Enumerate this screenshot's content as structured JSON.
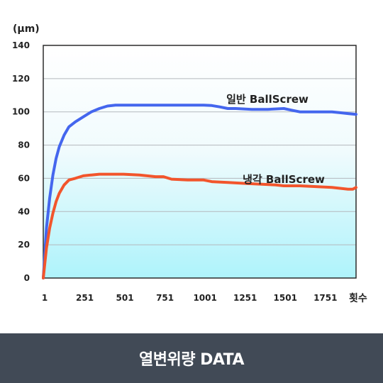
{
  "chart_data": {
    "type": "line",
    "unit_label": "(μm)",
    "x_axis_label": "횟수",
    "x_ticks": [
      1,
      251,
      501,
      751,
      1001,
      1251,
      1501,
      1751
    ],
    "y_ticks": [
      0,
      20,
      40,
      60,
      80,
      100,
      120,
      140
    ],
    "xlim": [
      1,
      1951
    ],
    "ylim": [
      0,
      140
    ],
    "grid": true,
    "series": [
      {
        "name": "일반 BallScrew",
        "color": "#4466ee",
        "x": [
          1,
          21,
          41,
          61,
          81,
          101,
          131,
          161,
          201,
          251,
          301,
          351,
          401,
          451,
          501,
          601,
          701,
          801,
          901,
          1001,
          1051,
          1101,
          1151,
          1201,
          1301,
          1401,
          1501,
          1551,
          1601,
          1651,
          1701,
          1801,
          1851,
          1901,
          1951
        ],
        "values": [
          0,
          30,
          48,
          62,
          72,
          79,
          86,
          91,
          94,
          97,
          100,
          102,
          103.5,
          104,
          104,
          104,
          104,
          104,
          104,
          104,
          103.8,
          103,
          102,
          102,
          101.5,
          101.5,
          102,
          101,
          100,
          100,
          100,
          100,
          99.5,
          99,
          98.5
        ]
      },
      {
        "name": "냉각 BallScrew",
        "color": "#f2552c",
        "x": [
          1,
          21,
          41,
          61,
          81,
          101,
          131,
          161,
          201,
          251,
          301,
          351,
          401,
          451,
          501,
          601,
          701,
          751,
          801,
          901,
          1001,
          1051,
          1151,
          1251,
          1351,
          1451,
          1501,
          1601,
          1701,
          1801,
          1851,
          1901,
          1931,
          1951
        ],
        "values": [
          0,
          18,
          30,
          39,
          46,
          51,
          56,
          59,
          60,
          61.5,
          62,
          62.5,
          62.5,
          62.5,
          62.5,
          62,
          61,
          61,
          59.5,
          59,
          59,
          58,
          57.5,
          57,
          56.5,
          56,
          55.5,
          55.5,
          55,
          54.5,
          54,
          53.5,
          53.5,
          54.5
        ]
      }
    ]
  },
  "footer": {
    "title": "열변위량 DATA"
  }
}
